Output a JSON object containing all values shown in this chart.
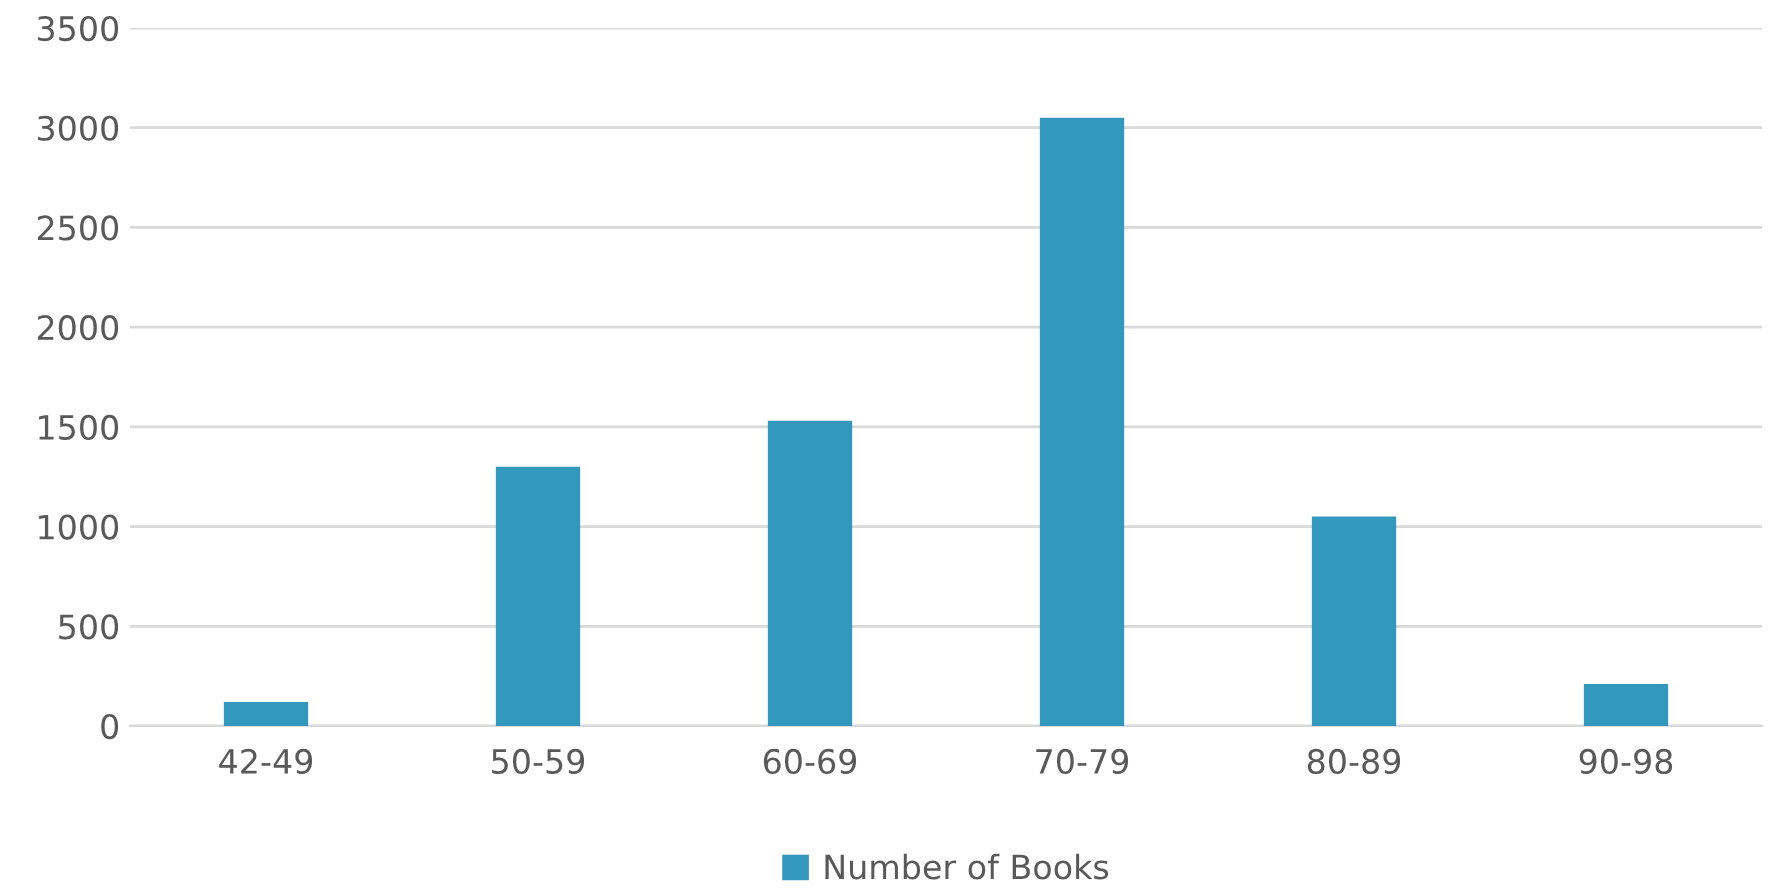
{
  "chart_data": {
    "type": "bar",
    "categories": [
      "42-49",
      "50-59",
      "60-69",
      "70-79",
      "80-89",
      "90-98"
    ],
    "series": [
      {
        "name": "Number of Books",
        "color": "#3498bd",
        "values": [
          120,
          1300,
          1530,
          3050,
          1050,
          210
        ]
      }
    ],
    "ylim": [
      0,
      3500
    ],
    "yticks": [
      0,
      500,
      1000,
      1500,
      2000,
      2500,
      3000,
      3500
    ],
    "grid": "y",
    "legend": "bottom"
  }
}
